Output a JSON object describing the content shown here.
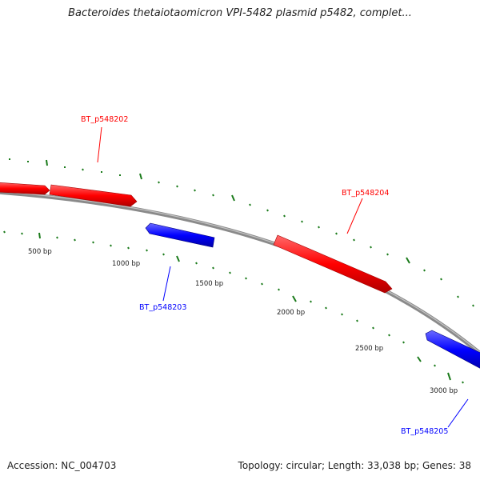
{
  "title": "Bacteroides thetaiotaomicron VPI-5482 plasmid p5482, complet...",
  "footer": {
    "accession": "Accession: NC_004703",
    "topology": "Topology: circular; Length: 33,038 bp; Genes: 38"
  },
  "colors": {
    "forward_gene": "#ff0000",
    "reverse_gene": "#0000ff",
    "backbone": "#888888",
    "tick": "#1a7a1a"
  },
  "scale_labels": [
    "500 bp",
    "1000 bp",
    "1500 bp",
    "2000 bp",
    "2500 bp",
    "3000 bp"
  ],
  "genes": [
    {
      "name": "BT_p548202",
      "strand": "forward"
    },
    {
      "name": "BT_p548203",
      "strand": "reverse"
    },
    {
      "name": "BT_p548204",
      "strand": "forward"
    },
    {
      "name": "BT_p548205",
      "strand": "reverse"
    }
  ]
}
